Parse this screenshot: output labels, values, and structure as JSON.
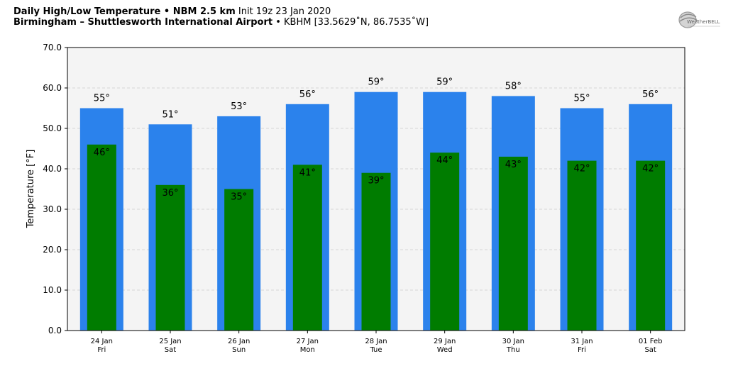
{
  "header": {
    "title_bold": "Daily High/Low Temperature • NBM 2.5 km",
    "title_init": "Init 19z 23 Jan 2020",
    "location_bold": "Birmingham – Shuttlesworth International Airport",
    "location_rest": "• KBHM [33.5629˚N, 86.7535˚W]",
    "logo_text": "WeatherBELL"
  },
  "colors": {
    "high": "#2b82ec",
    "low": "#007c00",
    "plot_bg": "#f4f4f4",
    "grid": "#cccccc"
  },
  "chart_data": {
    "type": "bar",
    "title": "Daily High/Low Temperature • NBM 2.5 km",
    "ylabel": "Temperature [°F]",
    "xlabel": "",
    "ylim": [
      0,
      70
    ],
    "yticks": [
      "0.0",
      "10.0",
      "20.0",
      "30.0",
      "40.0",
      "50.0",
      "60.0",
      "70.0"
    ],
    "grid": true,
    "categories": [
      {
        "date": "24 Jan",
        "day": "Fri"
      },
      {
        "date": "25 Jan",
        "day": "Sat"
      },
      {
        "date": "26 Jan",
        "day": "Sun"
      },
      {
        "date": "27 Jan",
        "day": "Mon"
      },
      {
        "date": "28 Jan",
        "day": "Tue"
      },
      {
        "date": "29 Jan",
        "day": "Wed"
      },
      {
        "date": "30 Jan",
        "day": "Thu"
      },
      {
        "date": "31 Jan",
        "day": "Fri"
      },
      {
        "date": "01 Feb",
        "day": "Sat"
      }
    ],
    "series": [
      {
        "values": [
          55,
          51,
          53,
          56,
          59,
          59,
          58,
          55,
          56
        ]
      },
      {
        "values": [
          46,
          36,
          35,
          41,
          39,
          44,
          43,
          42,
          42
        ]
      }
    ],
    "value_suffix": "°"
  }
}
